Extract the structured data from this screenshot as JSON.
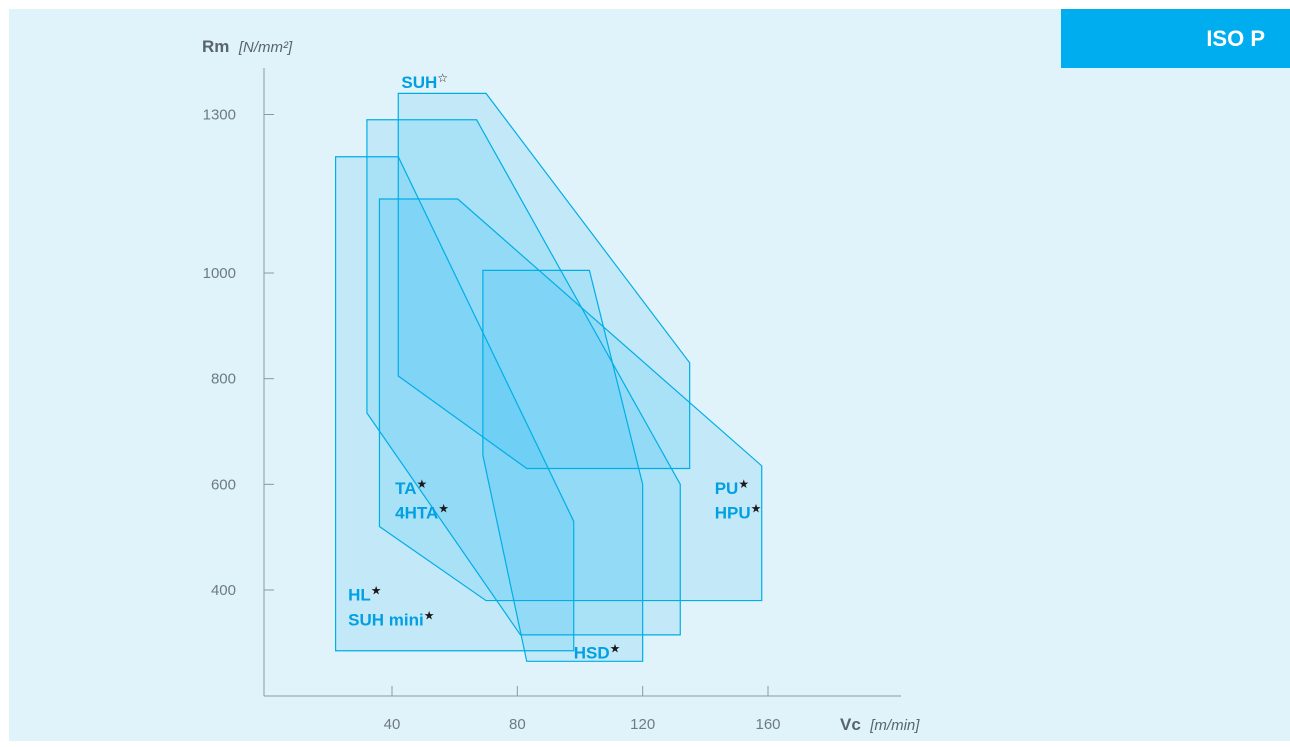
{
  "header": {
    "tab_label": "ISO P"
  },
  "chart_data": {
    "type": "area",
    "title": "",
    "xlabel": {
      "main": "Vc",
      "unit": "[m/min]"
    },
    "ylabel": {
      "main": "Rm",
      "unit": "[N/mm²]"
    },
    "xticks": [
      40,
      80,
      120,
      160
    ],
    "yticks": [
      400,
      600,
      800,
      1000,
      1300
    ],
    "xlim": [
      8,
      205
    ],
    "ylim": [
      250,
      1400
    ],
    "regions": [
      {
        "name": "HL / SUH mini",
        "polygon": [
          [
            22,
            285
          ],
          [
            22,
            1220
          ],
          [
            42,
            1220
          ],
          [
            98,
            530
          ],
          [
            98,
            285
          ]
        ]
      },
      {
        "name": "TA / 4HTA",
        "polygon": [
          [
            32,
            735
          ],
          [
            32,
            1290
          ],
          [
            67,
            1290
          ],
          [
            132,
            600
          ],
          [
            132,
            315
          ],
          [
            81,
            315
          ]
        ]
      },
      {
        "name": "PU / HPU",
        "polygon": [
          [
            36,
            520
          ],
          [
            36,
            1140
          ],
          [
            61,
            1140
          ],
          [
            158,
            635
          ],
          [
            158,
            380
          ],
          [
            70,
            380
          ]
        ]
      },
      {
        "name": "SUH",
        "polygon": [
          [
            42,
            805
          ],
          [
            42,
            1340
          ],
          [
            70,
            1340
          ],
          [
            135,
            830
          ],
          [
            135,
            630
          ],
          [
            83,
            630
          ]
        ]
      },
      {
        "name": "HSD",
        "polygon": [
          [
            69,
            655
          ],
          [
            69,
            1005
          ],
          [
            103,
            1005
          ],
          [
            120,
            600
          ],
          [
            120,
            265
          ],
          [
            83,
            265
          ]
        ]
      }
    ],
    "labels": [
      {
        "text": "SUH",
        "mark": "☆",
        "x": 43,
        "y": 1350
      },
      {
        "text": "TA",
        "mark": "★",
        "x": 41,
        "y": 582
      },
      {
        "text": "4HTA",
        "mark": "★",
        "x": 41,
        "y": 535
      },
      {
        "text": "PU",
        "mark": "★",
        "x": 143,
        "y": 582
      },
      {
        "text": "HPU",
        "mark": "★",
        "x": 143,
        "y": 535
      },
      {
        "text": "HL",
        "mark": "★",
        "x": 26,
        "y": 380
      },
      {
        "text": "SUH mini",
        "mark": "★",
        "x": 26,
        "y": 333
      },
      {
        "text": "HSD",
        "mark": "★",
        "x": 98,
        "y": 270
      }
    ]
  }
}
